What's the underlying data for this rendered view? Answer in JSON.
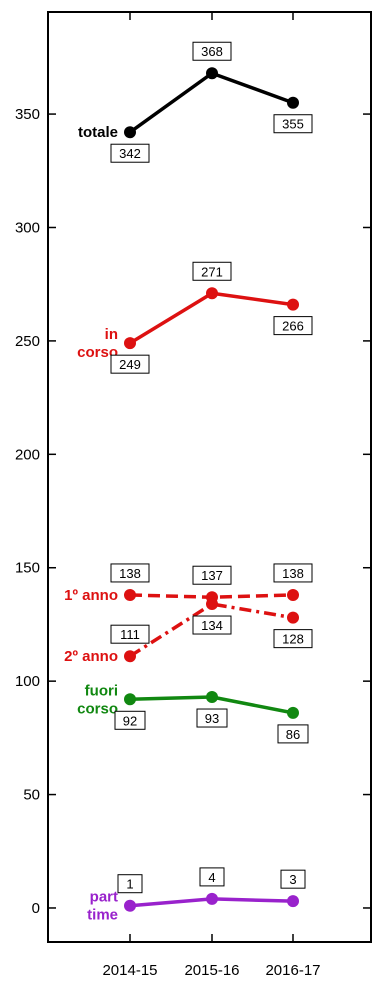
{
  "chart_data": {
    "type": "line",
    "categories": [
      "2014-15",
      "2015-16",
      "2016-17"
    ],
    "ylim": [
      -15,
      395
    ],
    "yticks": [
      0,
      50,
      100,
      150,
      200,
      250,
      300,
      350
    ],
    "ytick_labels": [
      "0",
      "50",
      "100",
      "150",
      "200",
      "250",
      "300",
      "350"
    ],
    "grid": false,
    "series": [
      {
        "name": "totale",
        "label_lines": [
          "totale"
        ],
        "values": [
          342,
          368,
          355
        ],
        "value_labels": [
          "342",
          "368",
          "355"
        ],
        "label_pos": [
          "below",
          "above",
          "below"
        ],
        "color": "#000000",
        "dash": "solid"
      },
      {
        "name": "in corso",
        "label_lines": [
          "in",
          "corso"
        ],
        "values": [
          249,
          271,
          266
        ],
        "value_labels": [
          "249",
          "271",
          "266"
        ],
        "label_pos": [
          "below",
          "above",
          "below"
        ],
        "color": "#dd1111",
        "dash": "solid"
      },
      {
        "name": "1º anno",
        "label_lines": [
          "1º anno"
        ],
        "values": [
          138,
          137,
          138
        ],
        "value_labels": [
          "138",
          "137",
          "138"
        ],
        "label_pos": [
          "above",
          "above",
          "above"
        ],
        "color": "#dd1111",
        "dash": "dashed"
      },
      {
        "name": "2º anno",
        "label_lines": [
          "2º anno"
        ],
        "values": [
          111,
          134,
          128
        ],
        "value_labels": [
          "111",
          "134",
          "128"
        ],
        "label_pos": [
          "above",
          "below",
          "below"
        ],
        "color": "#dd1111",
        "dash": "dashdot"
      },
      {
        "name": "fuori corso",
        "label_lines": [
          "fuori",
          "corso"
        ],
        "values": [
          92,
          93,
          86
        ],
        "value_labels": [
          "92",
          "93",
          "86"
        ],
        "label_pos": [
          "below",
          "below",
          "below"
        ],
        "color": "#118811",
        "dash": "solid"
      },
      {
        "name": "part time",
        "label_lines": [
          "part",
          "time"
        ],
        "values": [
          1,
          4,
          3
        ],
        "value_labels": [
          "1",
          "4",
          "3"
        ],
        "label_pos": [
          "above",
          "above",
          "above"
        ],
        "color": "#9922cc",
        "dash": "solid"
      }
    ]
  }
}
